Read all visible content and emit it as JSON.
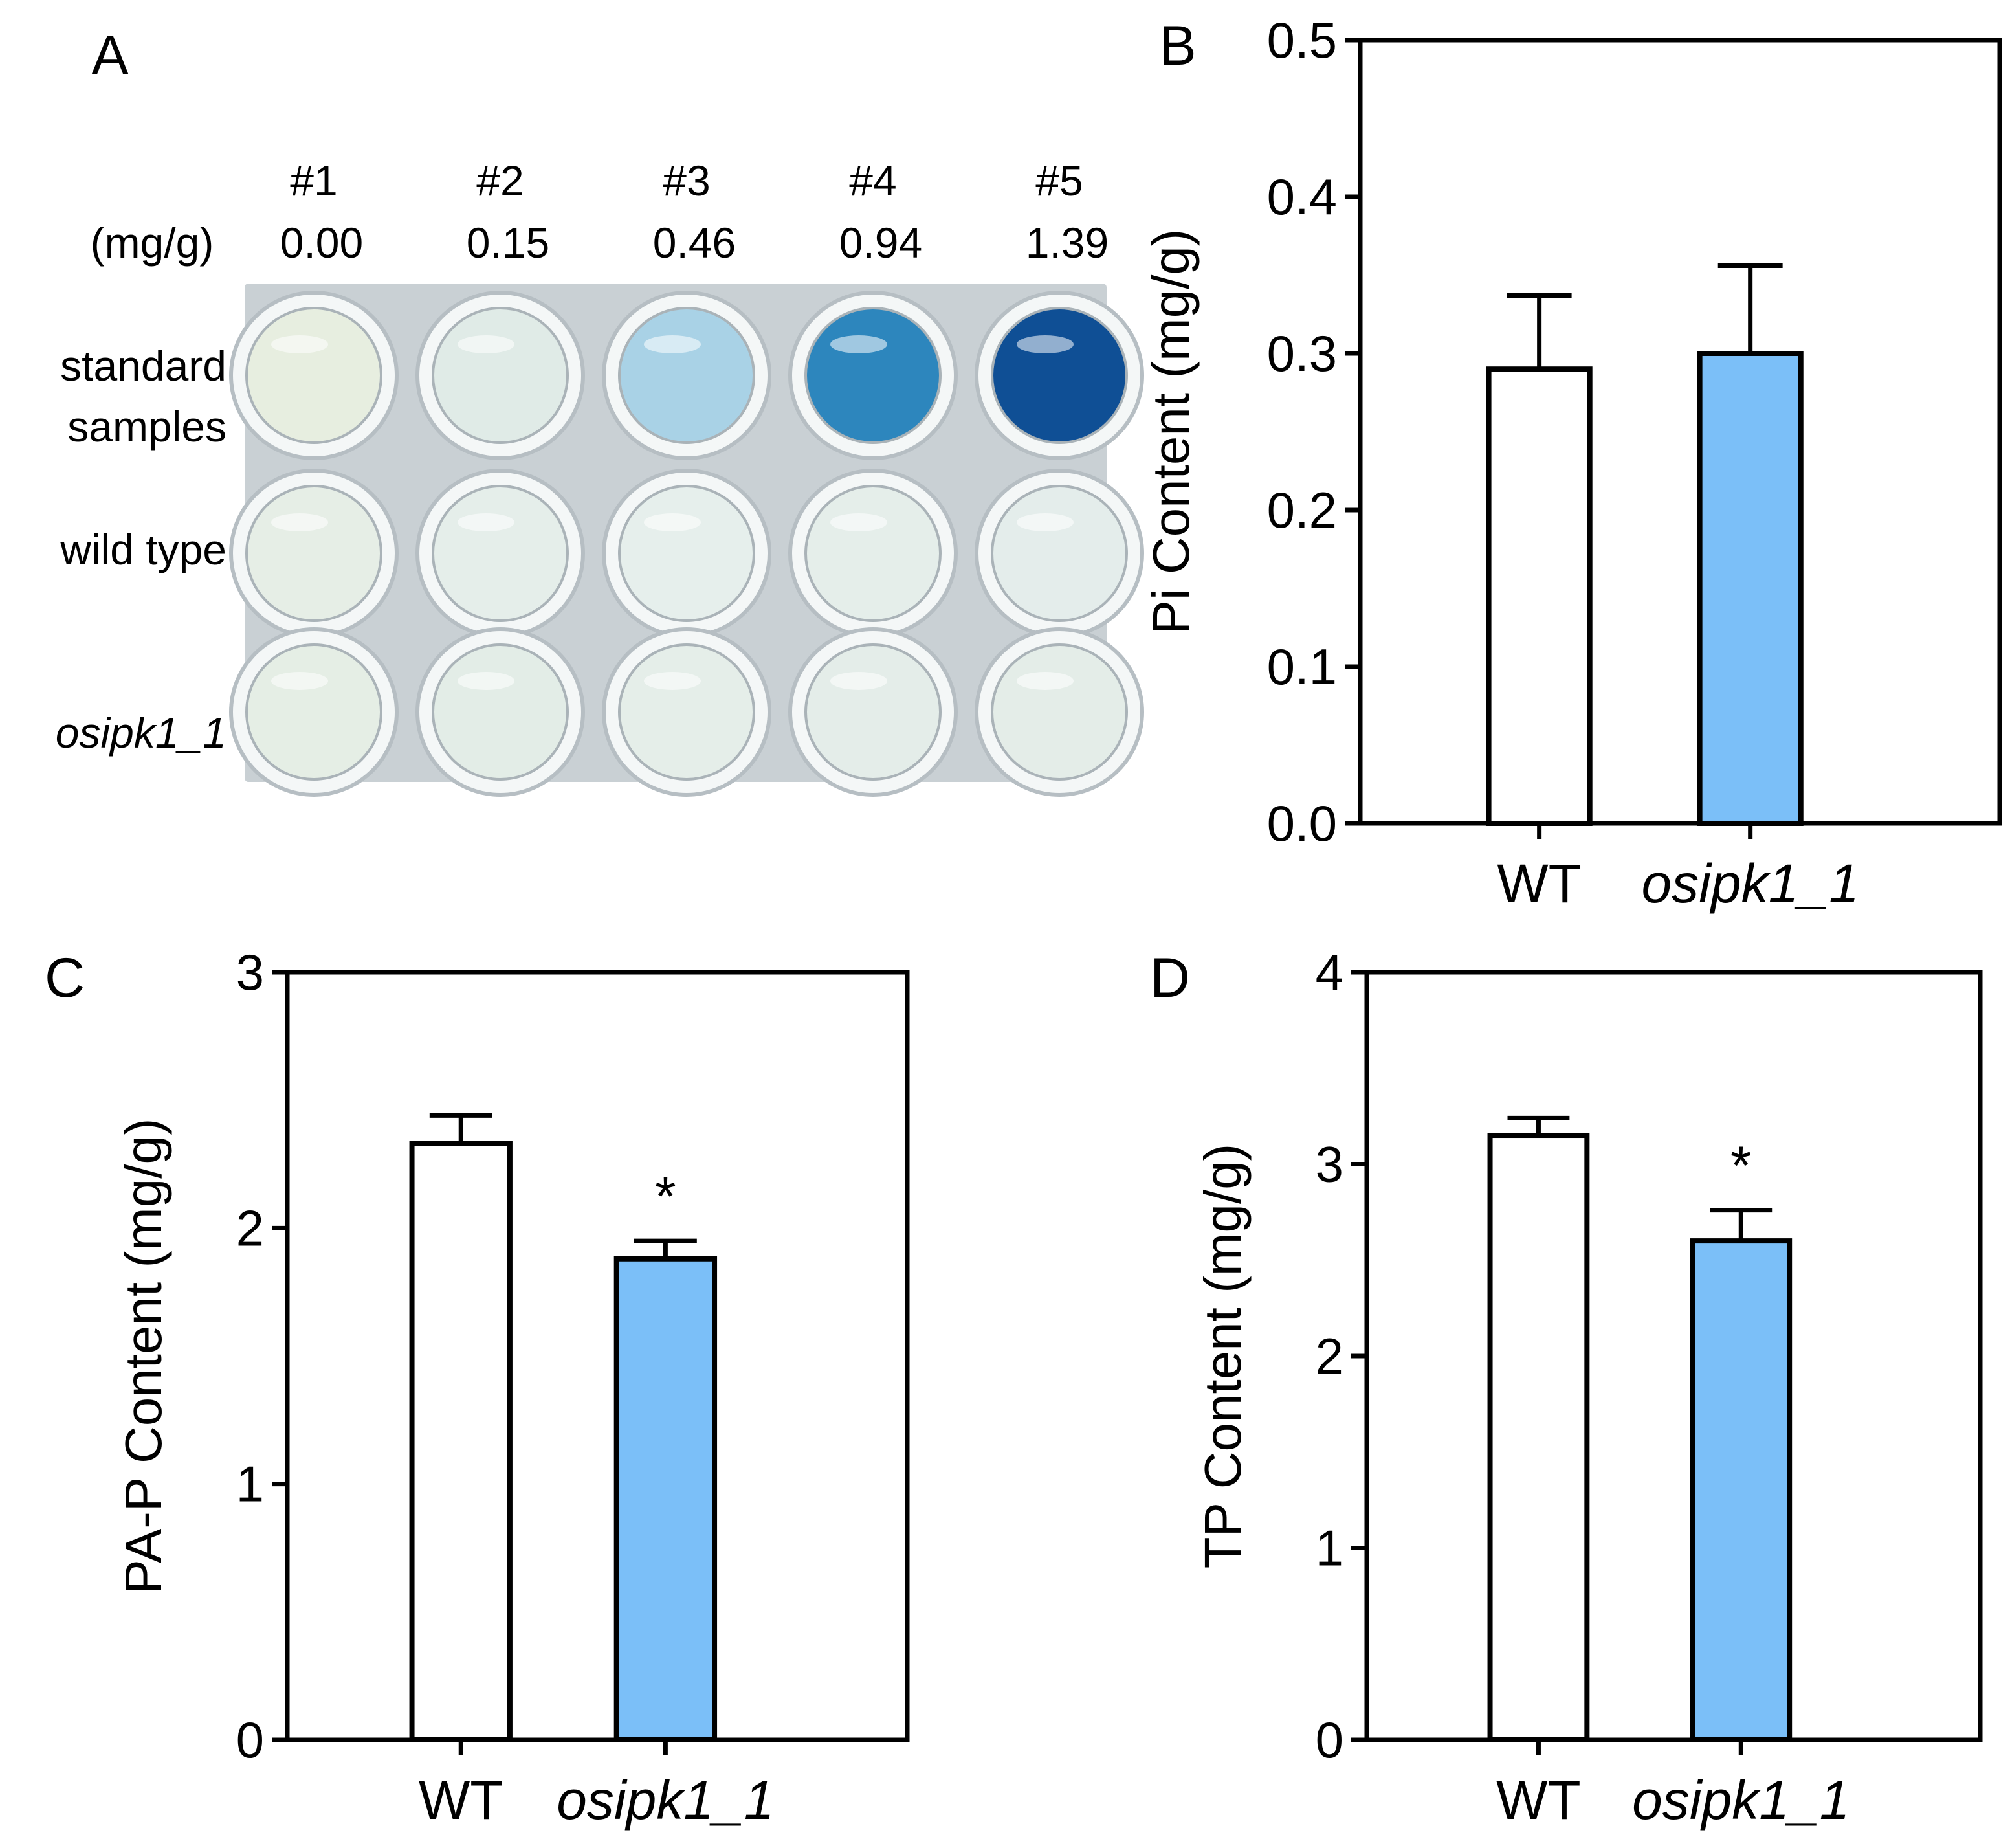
{
  "figure": {
    "panel_a": {
      "letter": "A",
      "unit_label": "(mg/g)",
      "columns": [
        {
          "id": "#1",
          "conc": "0.00"
        },
        {
          "id": "#2",
          "conc": "0.15"
        },
        {
          "id": "#3",
          "conc": "0.46"
        },
        {
          "id": "#4",
          "conc": "0.94"
        },
        {
          "id": "#5",
          "conc": "1.39"
        }
      ],
      "row_labels": {
        "standard_line1": "standard",
        "standard_line2": "samples",
        "wild_type": "wild type",
        "mutant": "osipk1_1"
      },
      "well_colors": [
        [
          "#e7eee0",
          "#e0ebe7",
          "#a9d2e6",
          "#2d86bd",
          "#0f4f95"
        ],
        [
          "#e6eee6",
          "#e5eeea",
          "#e6efec",
          "#e5eeea",
          "#e4edeb"
        ],
        [
          "#e5eee5",
          "#e3ede7",
          "#e5eee9",
          "#e4ede9",
          "#e4ede8"
        ]
      ],
      "plate_color": "#c9d0d4"
    },
    "colors": {
      "wt_fill": "#ffffff",
      "mutant_fill": "#7bbff8",
      "stroke": "#000000"
    }
  },
  "chart_data": [
    {
      "panel": "B",
      "type": "bar",
      "categories": [
        "WT",
        "osipk1_1"
      ],
      "values": [
        0.29,
        0.3
      ],
      "errors": [
        0.047,
        0.056
      ],
      "significance": [
        "",
        ""
      ],
      "ylabel": "Pi Content (mg/g)",
      "xlabel": "",
      "ylim": [
        0,
        0.5
      ],
      "yticks": [
        "0.0",
        "0.1",
        "0.2",
        "0.3",
        "0.4",
        "0.5"
      ]
    },
    {
      "panel": "C",
      "type": "bar",
      "categories": [
        "WT",
        "osipk1_1"
      ],
      "values": [
        2.33,
        1.88
      ],
      "errors": [
        0.11,
        0.07
      ],
      "significance": [
        "",
        "*"
      ],
      "ylabel": "PA-P Content (mg/g)",
      "xlabel": "",
      "ylim": [
        0,
        3
      ],
      "yticks": [
        "0",
        "1",
        "2",
        "3"
      ]
    },
    {
      "panel": "D",
      "type": "bar",
      "categories": [
        "WT",
        "osipk1_1"
      ],
      "values": [
        3.15,
        2.6
      ],
      "errors": [
        0.09,
        0.16
      ],
      "significance": [
        "",
        "*"
      ],
      "ylabel": "TP Content (mg/g)",
      "xlabel": "",
      "ylim": [
        0,
        4
      ],
      "yticks": [
        "0",
        "1",
        "2",
        "3",
        "4"
      ]
    }
  ]
}
